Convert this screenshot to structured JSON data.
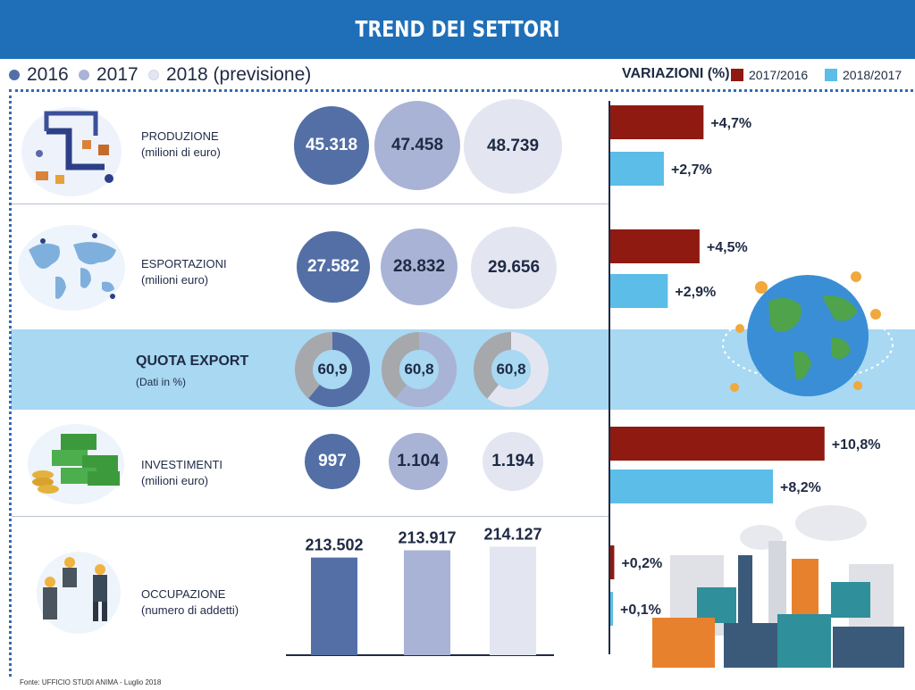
{
  "header": {
    "title": "TREND DEI SETTORI"
  },
  "legend": {
    "years": [
      {
        "label": "2016",
        "color": "#536fa6"
      },
      {
        "label": "2017",
        "color": "#a9b3d6"
      },
      {
        "label": "2018 (previsione)",
        "color": "#e3e6f1"
      }
    ],
    "variations_title": "VARIAZIONI (%)",
    "variations": [
      {
        "label": "2017/2016",
        "color": "#8f1a11"
      },
      {
        "label": "2018/2017",
        "color": "#5bbde8"
      }
    ]
  },
  "rows": {
    "produzione": {
      "title": "PRODUZIONE",
      "unit": "(milioni di euro)"
    },
    "esportazioni": {
      "title": "ESPORTAZIONI",
      "unit": "(milioni euro)"
    },
    "quota": {
      "title": "QUOTA EXPORT",
      "unit": "(Dati in %)"
    },
    "investimenti": {
      "title": "INVESTIMENTI",
      "unit": "(milioni euro)"
    },
    "occupazione": {
      "title": "OCCUPAZIONE",
      "unit": "(numero di addetti)"
    }
  },
  "chart_data": [
    {
      "type": "bubble",
      "series_years": [
        "2016",
        "2017",
        "2018 (previsione)"
      ],
      "produzione": [
        "45.318",
        "47.458",
        "48.739"
      ],
      "esportazioni": [
        "27.582",
        "28.832",
        "29.656"
      ],
      "investimenti": [
        "997",
        "1.104",
        "1.194"
      ]
    },
    {
      "type": "pie",
      "categories": [
        "2016",
        "2017",
        "2018 (previsione)"
      ],
      "values": [
        60.9,
        60.8,
        60.8
      ],
      "labels": [
        "60,9",
        "60,8",
        "60,8"
      ]
    },
    {
      "type": "bar",
      "categories": [
        "2016",
        "2017",
        "2018 (previsione)"
      ],
      "values": [
        213502,
        213917,
        214127
      ],
      "labels": [
        "213.502",
        "213.917",
        "214.127"
      ]
    },
    {
      "type": "bar",
      "orientation": "horizontal",
      "categories": [
        "PRODUZIONE",
        "ESPORTAZIONI",
        "INVESTIMENTI",
        "OCCUPAZIONE"
      ],
      "series": [
        {
          "name": "2017/2016",
          "values": [
            4.7,
            4.5,
            10.8,
            0.2
          ],
          "labels": [
            "+4,7%",
            "+4,5%",
            "+10,8%",
            "+0,2%"
          ]
        },
        {
          "name": "2018/2017",
          "values": [
            2.7,
            2.9,
            8.2,
            0.1
          ],
          "labels": [
            "+2,7%",
            "+2,9%",
            "+8,2%",
            "+0,1%"
          ]
        }
      ]
    }
  ],
  "footer": {
    "source": "Fonte: UFFICIO STUDI ANIMA - Luglio 2018"
  }
}
